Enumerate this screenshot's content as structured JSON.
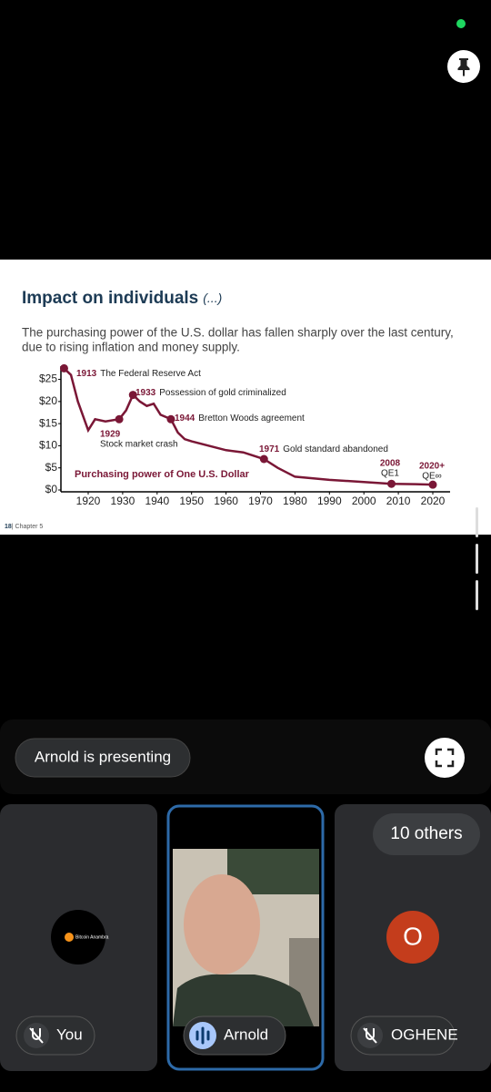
{
  "slide": {
    "title": "Impact on individuals",
    "title_suffix": "(...)",
    "body_lines": [
      "The purchasing power of the U.S. dollar has fallen sharply over the last century,",
      "due to rising inflation and money supply."
    ],
    "footer_page": "18",
    "footer_chapter": "| Chapter 5",
    "chart": {
      "type": "line",
      "series_label": "Purchasing power of One U.S. Dollar",
      "color": "#7a1736",
      "x": [
        1913,
        1915,
        1917,
        1920,
        1922,
        1925,
        1929,
        1931,
        1933,
        1935,
        1937,
        1939,
        1941,
        1944,
        1946,
        1948,
        1950,
        1955,
        1960,
        1965,
        1971,
        1975,
        1980,
        1990,
        2000,
        2008,
        2015,
        2020
      ],
      "values": [
        27.5,
        26,
        20,
        13.5,
        16,
        15.5,
        16,
        18,
        21.5,
        20,
        19,
        19.5,
        17,
        16,
        13,
        11.5,
        11,
        10,
        9,
        8.5,
        7,
        5,
        3,
        2.3,
        1.8,
        1.4,
        1.3,
        1.2
      ],
      "xlim": [
        1913,
        2023
      ],
      "xticks": [
        1920,
        1930,
        1940,
        1950,
        1960,
        1970,
        1980,
        1990,
        2000,
        2010,
        2020
      ],
      "ylim": [
        0,
        28
      ],
      "yticks": [
        {
          "value": 0,
          "label": "$0"
        },
        {
          "value": 5,
          "label": "$5"
        },
        {
          "value": 10,
          "label": "$10"
        },
        {
          "value": 15,
          "label": "$15"
        },
        {
          "value": 20,
          "label": "$20"
        },
        {
          "value": 25,
          "label": "$25"
        }
      ],
      "annotations": [
        {
          "x": 1913,
          "y": 27.5,
          "year": "1913",
          "text": "The Federal Reserve Act"
        },
        {
          "x": 1929,
          "y": 16,
          "year": "1929",
          "text": "Stock market crash"
        },
        {
          "x": 1933,
          "y": 21.5,
          "year": "1933",
          "text": "Possession of gold criminalized"
        },
        {
          "x": 1944,
          "y": 16,
          "year": "1944",
          "text": "Bretton Woods agreement"
        },
        {
          "x": 1971,
          "y": 7,
          "year": "1971",
          "text": "Gold standard abandoned"
        },
        {
          "x": 2008,
          "y": 1.4,
          "year": "2008",
          "text": "QE1"
        },
        {
          "x": 2020,
          "y": 1.2,
          "year": "2020+",
          "text": "QE∞"
        }
      ]
    }
  },
  "presenter_label": "Arnold is presenting",
  "others_label": "10 others",
  "logo_text": "Bitcoin Anambra",
  "tiles": [
    {
      "name": "You"
    },
    {
      "name": "Arnold"
    },
    {
      "name": "OGHENE",
      "initial": "O"
    }
  ]
}
